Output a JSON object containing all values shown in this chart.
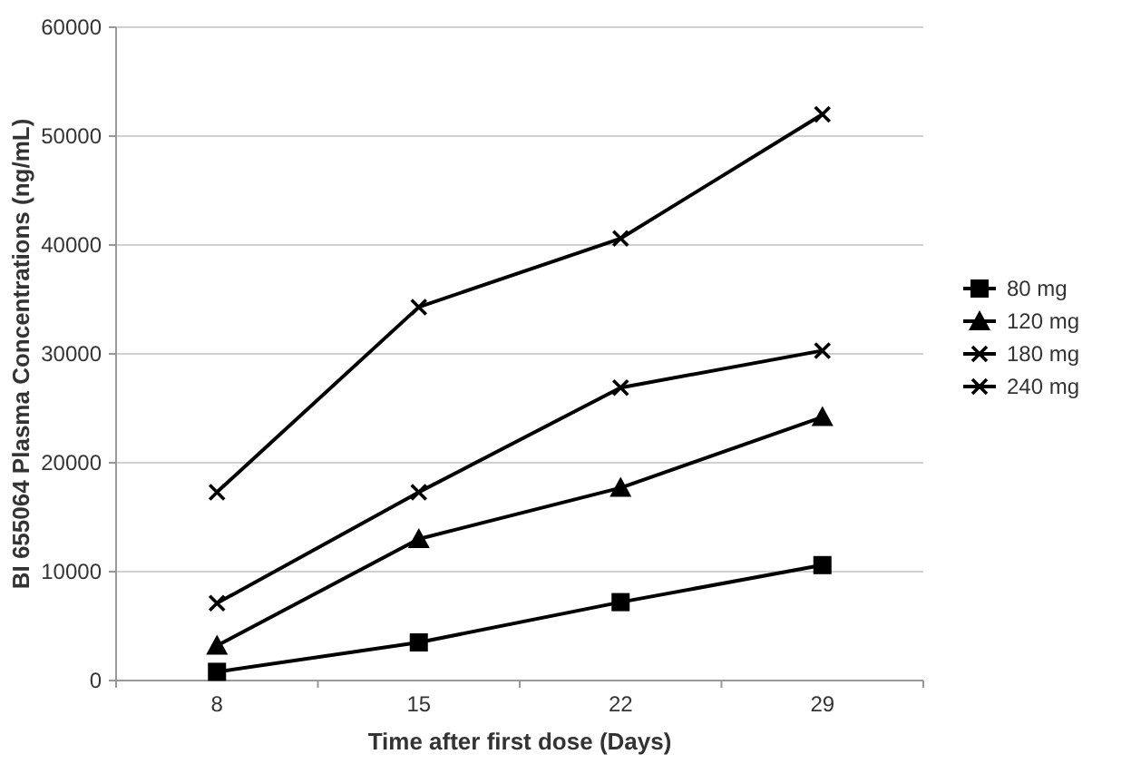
{
  "chart_data": {
    "type": "line",
    "xlabel": "Time after first dose (Days)",
    "ylabel": "BI 655064 Plasma Concentrations (ng/mL)",
    "categories": [
      "8",
      "15",
      "22",
      "29"
    ],
    "series": [
      {
        "name": "80 mg",
        "color": "#000000",
        "marker": "square",
        "values": [
          800,
          3500,
          7200,
          10600
        ]
      },
      {
        "name": "120 mg",
        "color": "#000000",
        "marker": "triangle",
        "values": [
          3200,
          13000,
          17700,
          24200
        ]
      },
      {
        "name": "180 mg",
        "color": "#000000",
        "marker": "cross",
        "values": [
          7100,
          17300,
          26900,
          30300
        ]
      },
      {
        "name": "240 mg",
        "color": "#000000",
        "marker": "cross",
        "values": [
          17300,
          34300,
          40600,
          52000
        ]
      }
    ],
    "ylim": [
      0,
      60000
    ],
    "yticks": [
      0,
      10000,
      20000,
      30000,
      40000,
      50000,
      60000
    ],
    "grid": "y",
    "legend": "right",
    "line_style": "solid"
  }
}
